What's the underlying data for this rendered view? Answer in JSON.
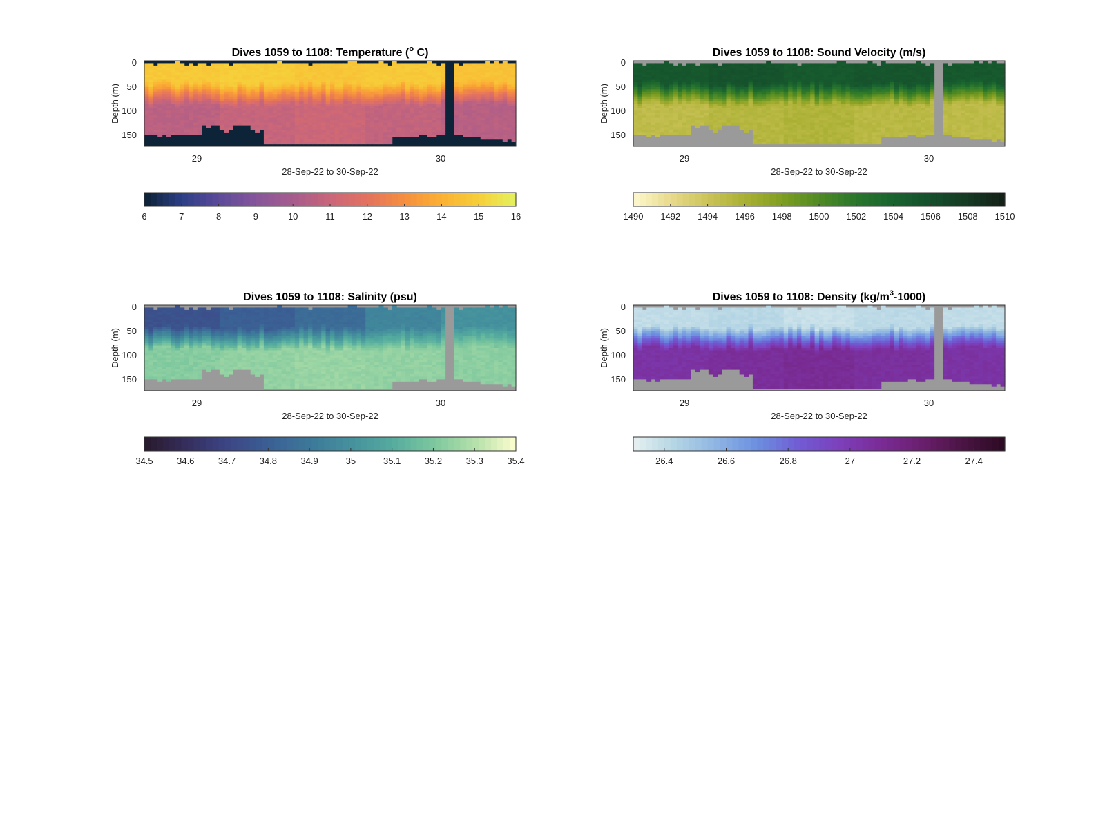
{
  "figure": {
    "background": "#ffffff",
    "no_data_color": "#9a9a9a"
  },
  "chart_data": [
    {
      "type": "heatmap",
      "id": "temperature",
      "title": "Dives 1059 to 1108: Temperature (",
      "title_sup": "o",
      "title_tail": " C)",
      "xlabel": "28-Sep-22 to 30-Sep-22",
      "ylabel": "Depth (m)",
      "xticks": [
        "29",
        "30"
      ],
      "yticks": [
        0,
        50,
        100,
        150
      ],
      "ylim": [
        0,
        175
      ],
      "xlim_days": [
        28.79,
        30.32
      ],
      "colorbar": {
        "ticks": [
          "6",
          "7",
          "8",
          "9",
          "10",
          "11",
          "12",
          "13",
          "14",
          "15",
          "16"
        ],
        "range": [
          6,
          16
        ],
        "colors": [
          "#0b2035",
          "#2c3f86",
          "#5b4a9a",
          "#86559b",
          "#a65b8d",
          "#c9667a",
          "#e4725f",
          "#f58f3f",
          "#fbb033",
          "#f6cf3a",
          "#e4f15f"
        ]
      },
      "no_data": "#0d2438",
      "field": {
        "mixed_layer": [
          14.8,
          14.9,
          14.7,
          14.8,
          14.6
        ],
        "deep": [
          10.6,
          10.9,
          11.1,
          10.8,
          10.5
        ]
      }
    },
    {
      "type": "heatmap",
      "id": "sound_velocity",
      "title": "Dives 1059 to 1108: Sound Velocity (m/s)",
      "title_sup": "",
      "title_tail": "",
      "xlabel": "28-Sep-22 to 30-Sep-22",
      "ylabel": "Depth (m)",
      "xticks": [
        "29",
        "30"
      ],
      "yticks": [
        0,
        50,
        100,
        150
      ],
      "ylim": [
        0,
        175
      ],
      "xlim_days": [
        28.79,
        30.32
      ],
      "colorbar": {
        "ticks": [
          "1490",
          "1492",
          "1494",
          "1496",
          "1498",
          "1500",
          "1502",
          "1504",
          "1506",
          "1508",
          "1510"
        ],
        "range": [
          1490,
          1510
        ],
        "colors": [
          "#fdf8cf",
          "#e8da8c",
          "#ccc359",
          "#a9b033",
          "#7f9e23",
          "#4f8a24",
          "#2a762c",
          "#19632f",
          "#154f2c",
          "#163a24",
          "#141f17"
        ]
      },
      "no_data": "#9a9a9a",
      "field": {
        "mixed_layer": [
          1505.2,
          1505.6,
          1505.0,
          1505.4,
          1505.1
        ],
        "deep": [
          1494.8,
          1495.3,
          1495.6,
          1495.1,
          1494.9
        ]
      }
    },
    {
      "type": "heatmap",
      "id": "salinity",
      "title": "Dives 1059 to 1108: Salinity (psu)",
      "title_sup": "",
      "title_tail": "",
      "xlabel": "28-Sep-22 to 30-Sep-22",
      "ylabel": "Depth (m)",
      "xticks": [
        "29",
        "30"
      ],
      "yticks": [
        0,
        50,
        100,
        150
      ],
      "ylim": [
        0,
        175
      ],
      "xlim_days": [
        28.79,
        30.32
      ],
      "colorbar": {
        "ticks": [
          "34.5",
          "34.6",
          "34.7",
          "34.8",
          "34.9",
          "35",
          "35.1",
          "35.2",
          "35.3",
          "35.4"
        ],
        "range": [
          34.5,
          35.4
        ],
        "colors": [
          "#281a2c",
          "#352d5c",
          "#3c4585",
          "#3b5f94",
          "#3c7899",
          "#45919d",
          "#54ab9e",
          "#7cc79e",
          "#b4e0a9",
          "#fdfdce"
        ]
      },
      "no_data": "#9a9a9a",
      "field": {
        "mixed_layer": [
          34.75,
          34.8,
          34.85,
          34.95,
          35.0
        ],
        "deep": [
          35.22,
          35.24,
          35.25,
          35.24,
          35.23
        ]
      }
    },
    {
      "type": "heatmap",
      "id": "density",
      "title": "Dives 1059 to 1108: Density (kg/m",
      "title_sup": "3",
      "title_tail": "-1000)",
      "xlabel": "28-Sep-22 to 30-Sep-22",
      "ylabel": "Depth (m)",
      "xticks": [
        "29",
        "30"
      ],
      "yticks": [
        0,
        50,
        100,
        150
      ],
      "ylim": [
        0,
        175
      ],
      "xlim_days": [
        28.79,
        30.32
      ],
      "colorbar": {
        "ticks": [
          "26.4",
          "26.6",
          "26.8",
          "27",
          "27.2",
          "27.4"
        ],
        "range": [
          26.3,
          27.5
        ],
        "colors": [
          "#e6f0f0",
          "#b4d5e4",
          "#8fb5e3",
          "#6c8fe0",
          "#715cd4",
          "#7d3fbb",
          "#7a2c95",
          "#6a1f6d",
          "#4a1443",
          "#2b0a22"
        ]
      },
      "no_data": "#9a9a9a",
      "field": {
        "mixed_layer": [
          26.4,
          26.42,
          26.38,
          26.41,
          26.4
        ],
        "deep": [
          27.05,
          27.08,
          27.1,
          27.07,
          27.05
        ]
      }
    }
  ]
}
